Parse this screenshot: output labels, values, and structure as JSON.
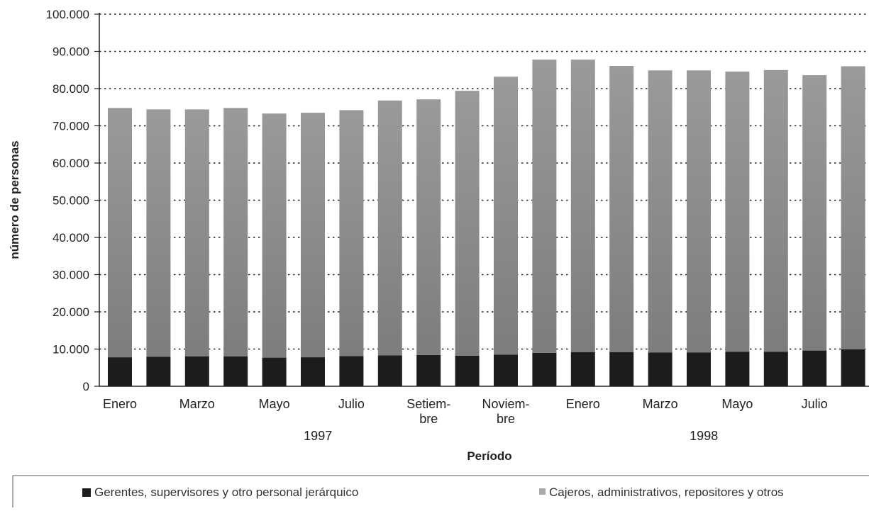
{
  "chart_data": {
    "type": "bar",
    "stacked": true,
    "title": "",
    "xlabel": "Período",
    "ylabel": "número de personas",
    "ylim": [
      0,
      100000
    ],
    "yticks": [
      0,
      10000,
      20000,
      30000,
      40000,
      50000,
      60000,
      70000,
      80000,
      90000,
      100000
    ],
    "ytick_labels": [
      "0",
      "10.000",
      "20.000",
      "30.000",
      "40.000",
      "50.000",
      "60.000",
      "70.000",
      "80.000",
      "90.000",
      "100.000"
    ],
    "grid": true,
    "legend_position": "bottom",
    "categories": [
      "1997-01",
      "1997-02",
      "1997-03",
      "1997-04",
      "1997-05",
      "1997-06",
      "1997-07",
      "1997-08",
      "1997-09",
      "1997-10",
      "1997-11",
      "1997-12",
      "1998-01",
      "1998-02",
      "1998-03",
      "1998-04",
      "1998-05",
      "1998-06",
      "1998-07",
      "1998-08"
    ],
    "category_labels": [
      {
        "index": 0,
        "lines": [
          "Enero"
        ]
      },
      {
        "index": 2,
        "lines": [
          "Marzo"
        ]
      },
      {
        "index": 4,
        "lines": [
          "Mayo"
        ]
      },
      {
        "index": 6,
        "lines": [
          "Julio"
        ]
      },
      {
        "index": 8,
        "lines": [
          "Setiem-",
          "bre"
        ]
      },
      {
        "index": 10,
        "lines": [
          "Noviem-",
          "bre"
        ]
      },
      {
        "index": 12,
        "lines": [
          "Enero"
        ]
      },
      {
        "index": 14,
        "lines": [
          "Marzo"
        ]
      },
      {
        "index": 16,
        "lines": [
          "Mayo"
        ]
      },
      {
        "index": 18,
        "lines": [
          "Julio"
        ]
      }
    ],
    "year_labels": [
      {
        "label": "1997",
        "center_index": 5.5
      },
      {
        "label": "1998",
        "center_index": 15.5
      }
    ],
    "series": [
      {
        "name": "Gerentes, supervisores y otro personal jerárquico",
        "color": "#1c1c1c",
        "values": [
          7800,
          7900,
          8000,
          8000,
          7700,
          7800,
          8100,
          8300,
          8400,
          8200,
          8500,
          9000,
          9200,
          9200,
          9100,
          9100,
          9300,
          9300,
          9600,
          9900
        ]
      },
      {
        "name": "Cajeros, administrativos, repositores y otros",
        "color": "#8c8c8c",
        "values": [
          67000,
          66500,
          66400,
          66800,
          65600,
          65700,
          66100,
          68500,
          68700,
          71200,
          74700,
          78800,
          78600,
          76900,
          75800,
          75800,
          75300,
          75700,
          74000,
          76100
        ]
      }
    ]
  }
}
